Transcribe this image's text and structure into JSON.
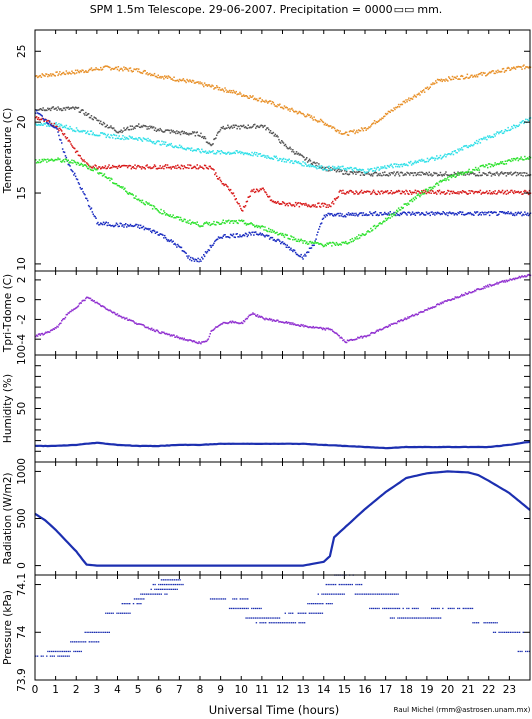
{
  "title": "SPM 1.5m Telescope. 29-06-2007. Precipitation = 0000",
  "title_units": "mm.",
  "credit": "Raul Michel (rmm@astrosen.unam.mx)",
  "colors": {
    "orange": "#e8912a",
    "gray": "#555555",
    "cyan": "#33e0e8",
    "red": "#d81b1b",
    "blue": "#1a2cc0",
    "green": "#2ee22e",
    "purple": "#9030d0",
    "navy": "#1c2fb0"
  },
  "chart_data": [
    {
      "type": "scatter",
      "name": "temperature",
      "ylabel": "Temperature (C)",
      "ylim": [
        9.5,
        26.5
      ],
      "yticks": [
        10,
        15,
        20,
        25
      ],
      "xlim": [
        0,
        24
      ],
      "series": [
        {
          "color": "orange",
          "x": [
            0,
            2,
            3.5,
            5,
            6,
            7.5,
            9,
            10,
            11,
            12,
            13,
            14,
            15,
            16,
            17,
            18,
            19,
            19.5,
            20,
            21,
            22,
            23,
            24
          ],
          "y": [
            23.3,
            23.6,
            23.9,
            23.7,
            23.3,
            22.9,
            22.4,
            22,
            21.6,
            21.1,
            20.6,
            20,
            19.2,
            19.6,
            20.6,
            21.6,
            22.4,
            23,
            23.1,
            23.3,
            23.5,
            23.8,
            24
          ]
        },
        {
          "color": "gray",
          "x": [
            0,
            2,
            3.2,
            4,
            5,
            6,
            7,
            8,
            8.5,
            9,
            10,
            11,
            11.5,
            12,
            13,
            14,
            15,
            16,
            18,
            20,
            22,
            24
          ],
          "y": [
            21,
            21,
            20,
            19.4,
            19.8,
            19.5,
            19.3,
            19.2,
            18.4,
            19.7,
            19.7,
            19.8,
            19.3,
            18.5,
            17.5,
            16.8,
            16.5,
            16.4,
            16.4,
            16.4,
            16.4,
            16.4
          ]
        },
        {
          "color": "cyan",
          "x": [
            0,
            1,
            2,
            3,
            4,
            5,
            6,
            7,
            8,
            9,
            10,
            11,
            12,
            13,
            14,
            15,
            16,
            17,
            18,
            19,
            20,
            21,
            22,
            23,
            24
          ],
          "y": [
            19.8,
            19.9,
            19.5,
            19.2,
            19,
            18.9,
            18.6,
            18.3,
            18,
            17.9,
            17.9,
            17.7,
            17.4,
            17.1,
            16.8,
            16.8,
            16.6,
            16.9,
            17.1,
            17.4,
            17.7,
            18.4,
            19,
            19.6,
            20.3
          ]
        },
        {
          "color": "red",
          "x": [
            0,
            1,
            1.5,
            2,
            2.5,
            3,
            5,
            7,
            8.5,
            9,
            9.5,
            10,
            10.5,
            11,
            11.5,
            12,
            13,
            14,
            14.3,
            14.8,
            15,
            17,
            20,
            24
          ],
          "y": [
            20.4,
            19.8,
            19,
            17.9,
            17,
            16.9,
            16.9,
            16.9,
            16.9,
            15.8,
            15.2,
            13.8,
            15.2,
            15.3,
            14.4,
            14.3,
            14.2,
            14.2,
            14.1,
            15.2,
            15.1,
            15.1,
            15.1,
            15.1
          ]
        },
        {
          "color": "blue",
          "x": [
            0,
            1,
            1.5,
            2,
            2.5,
            3,
            4,
            5,
            6,
            7,
            7.5,
            8,
            8.5,
            9,
            10,
            11,
            11.5,
            12,
            12.5,
            13,
            13.5,
            14,
            15,
            16,
            20,
            24
          ],
          "y": [
            20.8,
            19.6,
            17.4,
            16,
            14.5,
            12.9,
            12.8,
            12.7,
            12.2,
            11.2,
            10.4,
            10.3,
            11.3,
            12,
            12.1,
            12.2,
            11.8,
            11.5,
            11,
            10.5,
            11.5,
            13.5,
            13.5,
            13.6,
            13.6,
            13.6
          ]
        },
        {
          "color": "green",
          "x": [
            0,
            1,
            2,
            3,
            4,
            5,
            6,
            7,
            8,
            9,
            10,
            11,
            12,
            13,
            14,
            15,
            16,
            17,
            18,
            19,
            20,
            21,
            22,
            23,
            24
          ],
          "y": [
            17.3,
            17.4,
            17.2,
            16.6,
            15.6,
            14.6,
            13.8,
            13.2,
            12.8,
            13,
            13,
            12.6,
            12.1,
            11.6,
            11.4,
            11.5,
            12.2,
            13.2,
            14.3,
            15.3,
            16.1,
            16.6,
            17,
            17.3,
            17.6
          ]
        }
      ]
    },
    {
      "type": "scatter",
      "name": "tpri-tdome",
      "ylabel": "Tpri-Tdome (C)",
      "ylim": [
        -5.6,
        2.9
      ],
      "yticks": [
        -4,
        -2,
        0,
        2
      ],
      "xlim": [
        0,
        24
      ],
      "series": [
        {
          "color": "purple",
          "x": [
            0,
            0.5,
            1,
            1.5,
            2,
            2.5,
            3,
            4,
            5,
            6,
            7,
            7.5,
            8,
            8.3,
            8.5,
            9,
            9.5,
            10,
            10.5,
            11,
            12,
            13,
            14,
            14.3,
            14.6,
            15,
            16,
            17,
            18,
            19,
            20,
            21,
            22,
            23,
            24
          ],
          "y": [
            -3.6,
            -3.3,
            -2.8,
            -1.5,
            -0.6,
            0.3,
            -0.3,
            -1.5,
            -2.4,
            -3.2,
            -3.8,
            -4.1,
            -4.3,
            -4.2,
            -3.2,
            -2.3,
            -2.2,
            -2.3,
            -1.3,
            -1.8,
            -2.2,
            -2.6,
            -2.9,
            -2.9,
            -3.4,
            -4.2,
            -3.6,
            -2.7,
            -1.8,
            -0.9,
            0,
            0.8,
            1.5,
            2.1,
            2.6
          ]
        }
      ]
    },
    {
      "type": "line",
      "name": "humidity",
      "ylabel": "Humidity (%)",
      "ylim": [
        0,
        100
      ],
      "yticks": [
        10,
        20,
        30,
        40,
        50,
        60,
        70,
        80,
        90,
        100
      ],
      "ytick_labels": [
        "",
        "",
        "",
        "",
        "50",
        "",
        "",
        "",
        "",
        "100"
      ],
      "xlim": [
        0,
        24
      ],
      "series": [
        {
          "color": "navy",
          "x": [
            0,
            1,
            2,
            3,
            4,
            5,
            6,
            7,
            8,
            9,
            10,
            11,
            12,
            13,
            14,
            15,
            16,
            17,
            18,
            19,
            20,
            21,
            22,
            23,
            24
          ],
          "y": [
            15,
            15,
            16,
            18,
            16,
            15,
            15,
            16,
            16,
            17,
            17,
            17,
            17,
            17,
            16,
            15,
            14,
            13,
            14,
            14,
            14,
            14,
            14,
            16,
            19
          ]
        }
      ]
    },
    {
      "type": "line",
      "name": "radiation",
      "ylabel": "Radiation (W/m2)",
      "ylim": [
        -100,
        1100
      ],
      "yticks": [
        0,
        500,
        1000
      ],
      "xlim": [
        0,
        24
      ],
      "series": [
        {
          "color": "navy",
          "x": [
            0,
            0.5,
            1,
            2,
            2.5,
            3,
            5,
            8,
            11,
            13,
            14,
            14.3,
            14.5,
            15,
            16,
            17,
            18,
            19,
            20,
            21,
            21.5,
            22,
            23,
            24
          ],
          "y": [
            550,
            480,
            380,
            150,
            10,
            0,
            0,
            0,
            0,
            0,
            40,
            100,
            300,
            400,
            600,
            780,
            930,
            980,
            1000,
            990,
            960,
            900,
            770,
            590
          ]
        }
      ]
    },
    {
      "type": "scatter",
      "name": "pressure",
      "ylabel": "Pressure (kPa)",
      "ylim": [
        73.9,
        74.12
      ],
      "yticks": [
        73.9,
        74,
        74.1
      ],
      "ytick_labels": [
        "73.9",
        "74",
        "74.1"
      ],
      "xlim": [
        0,
        24
      ],
      "series": [
        {
          "color": "navy",
          "segments": [
            [
              0,
              1.7,
              73.95
            ],
            [
              0.5,
              2.3,
              73.96
            ],
            [
              1.7,
              3.1,
              73.98
            ],
            [
              2.4,
              3.6,
              74.0
            ],
            [
              3.4,
              4.6,
              74.04
            ],
            [
              4.2,
              5.1,
              74.06
            ],
            [
              4.7,
              5.3,
              74.07
            ],
            [
              5.1,
              6.4,
              74.08
            ],
            [
              5.6,
              6.9,
              74.09
            ],
            [
              5.7,
              7.3,
              74.1
            ],
            [
              6.1,
              7.0,
              74.11
            ],
            [
              8.3,
              10.3,
              74.07
            ],
            [
              9.4,
              11.0,
              74.05
            ],
            [
              10.2,
              11.9,
              74.03
            ],
            [
              10.7,
              13.1,
              74.02
            ],
            [
              12.1,
              13.9,
              74.04
            ],
            [
              13.2,
              14.4,
              74.06
            ],
            [
              13.7,
              15.0,
              74.08
            ],
            [
              14.0,
              15.8,
              74.1
            ],
            [
              14.5,
              15.5,
              74.12
            ],
            [
              15.5,
              17.6,
              74.08
            ],
            [
              16.2,
              18.6,
              74.05
            ],
            [
              17.2,
              19.8,
              74.03
            ],
            [
              19.2,
              21.2,
              74.05
            ],
            [
              21.2,
              22.4,
              74.02
            ],
            [
              22.2,
              23.7,
              74.0
            ],
            [
              23.4,
              24,
              73.96
            ]
          ]
        }
      ]
    }
  ],
  "x_axis": {
    "label": "Universal Time (hours)",
    "ticks": [
      0,
      1,
      2,
      3,
      4,
      5,
      6,
      7,
      8,
      9,
      10,
      11,
      12,
      13,
      14,
      15,
      16,
      17,
      18,
      19,
      20,
      21,
      22,
      23
    ],
    "labels": [
      "0",
      "1",
      "2",
      "3",
      "4",
      "5",
      "6",
      "7",
      "8",
      "9",
      "10",
      "11",
      "12",
      "13",
      "14",
      "15",
      "16",
      "17",
      "18",
      "19",
      "20",
      "21",
      "22",
      "23"
    ]
  }
}
